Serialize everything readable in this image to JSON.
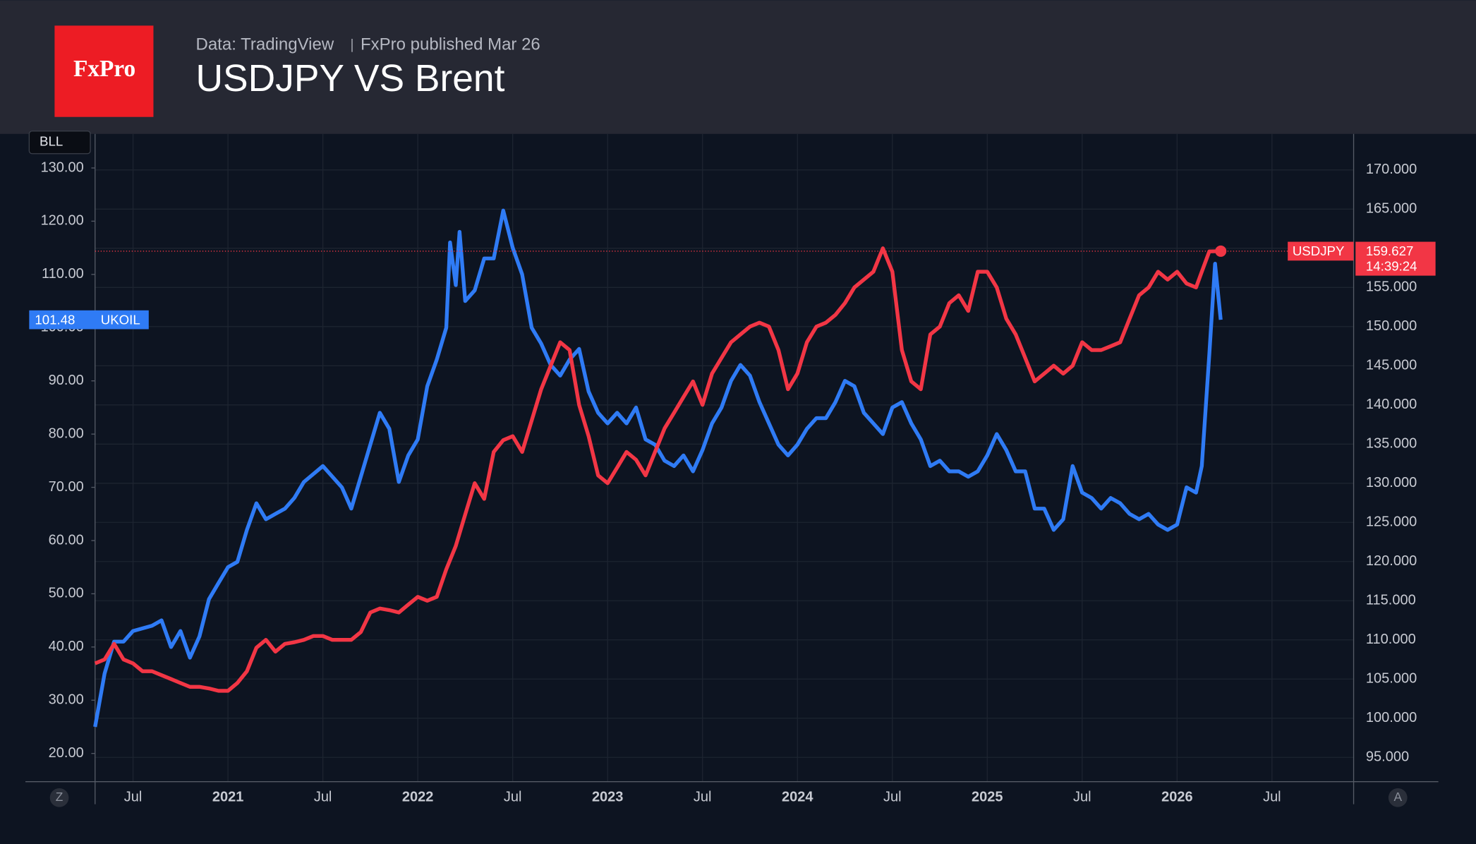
{
  "header": {
    "logo": "FxPro",
    "source": "Data: TradingView",
    "published": "FxPro published Mar 26",
    "title": "USDJPY VS Brent"
  },
  "chart_data": {
    "type": "line",
    "y_axis_label": "BLL",
    "buttons": [
      "Z",
      "A"
    ],
    "last_price_timer": "14:39:24",
    "grid": true,
    "xlim": [
      2020.3,
      2026.93
    ],
    "ylim": [
      14.7,
      136.4
    ],
    "y2lim": [
      91.9,
      174.6
    ],
    "xticks": [
      {
        "value": 2020.5,
        "label": "Jul"
      },
      2021,
      {
        "value": 2021.5,
        "label": "Jul"
      },
      2022,
      {
        "value": 2022.5,
        "label": "Jul"
      },
      2023,
      {
        "value": 2023.5,
        "label": "Jul"
      },
      2024,
      {
        "value": 2024.5,
        "label": "Jul"
      },
      2025,
      {
        "value": 2025.5,
        "label": "Jul"
      },
      2026,
      {
        "value": 2026.5,
        "label": "Jul"
      }
    ],
    "yticks": [
      {
        "value": 20,
        "label": "20.00"
      },
      {
        "value": 30,
        "label": "30.00"
      },
      {
        "value": 40,
        "label": "40.00"
      },
      {
        "value": 50,
        "label": "50.00"
      },
      {
        "value": 60,
        "label": "60.00"
      },
      {
        "value": 70,
        "label": "70.00"
      },
      {
        "value": 80,
        "label": "80.00"
      },
      {
        "value": 90,
        "label": "90.00"
      },
      {
        "value": 100,
        "label": "100.00"
      },
      {
        "value": 110,
        "label": "110.00"
      },
      {
        "value": 120,
        "label": "120.00"
      },
      {
        "value": 130,
        "label": "130.00"
      }
    ],
    "y2ticks": [
      {
        "value": 95,
        "label": "95.000"
      },
      {
        "value": 100,
        "label": "100.000"
      },
      {
        "value": 105,
        "label": "105.000"
      },
      {
        "value": 110,
        "label": "110.000"
      },
      {
        "value": 115,
        "label": "115.000"
      },
      {
        "value": 120,
        "label": "120.000"
      },
      {
        "value": 125,
        "label": "125.000"
      },
      {
        "value": 130,
        "label": "130.000"
      },
      {
        "value": 135,
        "label": "135.000"
      },
      {
        "value": 140,
        "label": "140.000"
      },
      {
        "value": 145,
        "label": "145.000"
      },
      {
        "value": 150,
        "label": "150.000"
      },
      {
        "value": 155,
        "label": "155.000"
      },
      {
        "value": 160,
        "label": "160.000"
      },
      {
        "value": 165,
        "label": "165.000"
      },
      {
        "value": 170,
        "label": "170.000"
      }
    ],
    "series": [
      {
        "name": "UKOIL",
        "color": "#2f7bf5",
        "axis": "y",
        "x": [
          2020.3,
          2020.35,
          2020.4,
          2020.45,
          2020.5,
          2020.6,
          2020.65,
          2020.7,
          2020.75,
          2020.8,
          2020.85,
          2020.9,
          2020.95,
          2021.0,
          2021.05,
          2021.1,
          2021.15,
          2021.2,
          2021.25,
          2021.3,
          2021.35,
          2021.4,
          2021.5,
          2021.55,
          2021.6,
          2021.65,
          2021.7,
          2021.75,
          2021.8,
          2021.85,
          2021.9,
          2021.95,
          2022.0,
          2022.05,
          2022.1,
          2022.15,
          2022.17,
          2022.2,
          2022.22,
          2022.25,
          2022.3,
          2022.35,
          2022.4,
          2022.45,
          2022.5,
          2022.55,
          2022.6,
          2022.65,
          2022.7,
          2022.75,
          2022.8,
          2022.85,
          2022.9,
          2022.95,
          2023.0,
          2023.05,
          2023.1,
          2023.15,
          2023.2,
          2023.25,
          2023.3,
          2023.35,
          2023.4,
          2023.45,
          2023.5,
          2023.55,
          2023.6,
          2023.65,
          2023.7,
          2023.75,
          2023.8,
          2023.85,
          2023.9,
          2023.95,
          2024.0,
          2024.05,
          2024.1,
          2024.15,
          2024.2,
          2024.25,
          2024.3,
          2024.35,
          2024.4,
          2024.45,
          2024.5,
          2024.55,
          2024.6,
          2024.65,
          2024.7,
          2024.75,
          2024.8,
          2024.85,
          2024.9,
          2024.95,
          2025.0,
          2025.05,
          2025.1,
          2025.15,
          2025.2,
          2025.25,
          2025.3,
          2025.35,
          2025.4,
          2025.45,
          2025.5,
          2025.55,
          2025.6,
          2025.65,
          2025.7,
          2025.75,
          2025.8,
          2025.85,
          2025.9,
          2025.95,
          2026.0,
          2026.05,
          2026.1,
          2026.13,
          2026.17,
          2026.2,
          2026.23
        ],
        "values": [
          25,
          35,
          41,
          41,
          43,
          44,
          45,
          40,
          43,
          38,
          42,
          49,
          52,
          55,
          56,
          62,
          67,
          64,
          65,
          66,
          68,
          71,
          74,
          72,
          70,
          66,
          72,
          78,
          84,
          81,
          71,
          76,
          79,
          89,
          94,
          100,
          116,
          108,
          118,
          105,
          107,
          113,
          113,
          122,
          115,
          110,
          100,
          97,
          93,
          91,
          94,
          96,
          88,
          84,
          82,
          84,
          82,
          85,
          79,
          78,
          75,
          74,
          76,
          73,
          77,
          82,
          85,
          90,
          93,
          91,
          86,
          82,
          78,
          76,
          78,
          81,
          83,
          83,
          86,
          90,
          89,
          84,
          82,
          80,
          85,
          86,
          82,
          79,
          74,
          75,
          73,
          73,
          72,
          73,
          76,
          80,
          77,
          73,
          73,
          66,
          66,
          62,
          64,
          74,
          69,
          68,
          66,
          68,
          67,
          65,
          64,
          65,
          63,
          62,
          63,
          70,
          69,
          74,
          95,
          112,
          101.48
        ]
      },
      {
        "name": "USDJPY",
        "color": "#f23645",
        "axis": "y2",
        "x": [
          2020.3,
          2020.35,
          2020.4,
          2020.45,
          2020.5,
          2020.55,
          2020.6,
          2020.65,
          2020.7,
          2020.75,
          2020.8,
          2020.85,
          2020.9,
          2020.95,
          2021.0,
          2021.05,
          2021.1,
          2021.15,
          2021.2,
          2021.25,
          2021.3,
          2021.35,
          2021.4,
          2021.45,
          2021.5,
          2021.55,
          2021.6,
          2021.65,
          2021.7,
          2021.75,
          2021.8,
          2021.85,
          2021.9,
          2021.95,
          2022.0,
          2022.05,
          2022.1,
          2022.15,
          2022.2,
          2022.25,
          2022.3,
          2022.35,
          2022.4,
          2022.45,
          2022.5,
          2022.55,
          2022.6,
          2022.65,
          2022.7,
          2022.75,
          2022.8,
          2022.85,
          2022.9,
          2022.95,
          2023.0,
          2023.05,
          2023.1,
          2023.15,
          2023.2,
          2023.25,
          2023.3,
          2023.35,
          2023.4,
          2023.45,
          2023.5,
          2023.55,
          2023.6,
          2023.65,
          2023.7,
          2023.75,
          2023.8,
          2023.85,
          2023.9,
          2023.95,
          2024.0,
          2024.05,
          2024.1,
          2024.15,
          2024.2,
          2024.25,
          2024.3,
          2024.35,
          2024.4,
          2024.45,
          2024.5,
          2024.55,
          2024.6,
          2024.65,
          2024.7,
          2024.75,
          2024.8,
          2024.85,
          2024.9,
          2024.95,
          2025.0,
          2025.05,
          2025.1,
          2025.15,
          2025.2,
          2025.25,
          2025.3,
          2025.35,
          2025.4,
          2025.45,
          2025.5,
          2025.55,
          2025.6,
          2025.65,
          2025.7,
          2025.75,
          2025.8,
          2025.85,
          2025.9,
          2025.95,
          2026.0,
          2026.05,
          2026.1,
          2026.13,
          2026.17,
          2026.23
        ],
        "values": [
          107,
          107.5,
          109.5,
          107.5,
          107,
          106,
          106,
          105.5,
          105,
          104.5,
          104,
          104,
          103.8,
          103.5,
          103.5,
          104.5,
          106,
          109,
          110,
          108.5,
          109.5,
          109.7,
          110,
          110.5,
          110.5,
          110,
          110,
          110,
          111,
          113.5,
          114,
          113.8,
          113.5,
          114.5,
          115.5,
          115,
          115.5,
          119,
          122,
          126,
          130,
          128,
          134,
          135.5,
          136,
          134,
          138,
          142,
          145,
          148,
          147,
          140,
          136,
          131,
          130,
          132,
          134,
          133,
          131,
          134,
          137,
          139,
          141,
          143,
          140,
          144,
          146,
          148,
          149,
          150,
          150.5,
          150,
          147,
          142,
          144,
          148,
          150,
          150.5,
          151.5,
          153,
          155,
          156,
          157,
          160,
          157,
          147,
          143,
          142,
          149,
          150,
          153,
          154,
          152,
          157,
          157,
          155,
          151,
          149,
          146,
          143,
          144,
          145,
          144,
          145,
          148,
          147,
          147,
          147.5,
          148,
          151,
          154,
          155,
          157,
          156,
          157,
          155.5,
          155,
          157,
          159.6,
          159.627
        ]
      }
    ]
  }
}
